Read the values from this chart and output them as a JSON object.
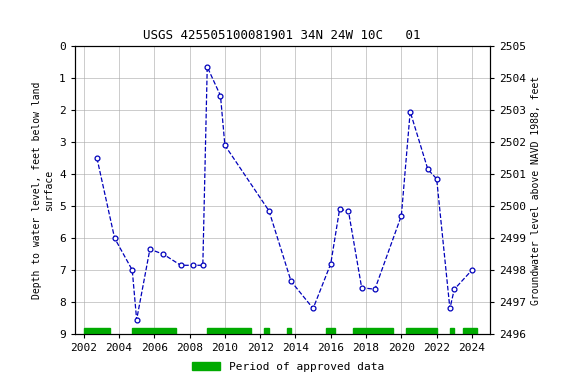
{
  "title": "USGS 425505100081901 34N 24W 10C   01",
  "ylabel_left": "Depth to water level, feet below land\nsurface",
  "ylabel_right": "Groundwater level above NAVD 1988, feet",
  "data_points": [
    [
      2002.75,
      3.5
    ],
    [
      2003.75,
      6.0
    ],
    [
      2004.75,
      7.0
    ],
    [
      2005.0,
      8.55
    ],
    [
      2005.75,
      6.35
    ],
    [
      2006.5,
      6.5
    ],
    [
      2007.5,
      6.85
    ],
    [
      2008.2,
      6.85
    ],
    [
      2008.75,
      6.85
    ],
    [
      2009.0,
      0.65
    ],
    [
      2009.75,
      1.55
    ],
    [
      2010.0,
      3.1
    ],
    [
      2012.5,
      5.15
    ],
    [
      2013.75,
      7.35
    ],
    [
      2015.0,
      8.2
    ],
    [
      2016.0,
      6.8
    ],
    [
      2016.5,
      5.1
    ],
    [
      2017.0,
      5.15
    ],
    [
      2017.75,
      7.55
    ],
    [
      2018.5,
      7.6
    ],
    [
      2020.0,
      5.3
    ],
    [
      2020.5,
      2.05
    ],
    [
      2021.5,
      3.85
    ],
    [
      2022.0,
      4.15
    ],
    [
      2022.75,
      8.2
    ],
    [
      2023.0,
      7.6
    ],
    [
      2024.0,
      7.0
    ]
  ],
  "ylim_left": [
    9.0,
    0.0
  ],
  "ylim_right": [
    2496.0,
    2505.0
  ],
  "xlim": [
    2001.5,
    2025.0
  ],
  "xticks": [
    2002,
    2004,
    2006,
    2008,
    2010,
    2012,
    2014,
    2016,
    2018,
    2020,
    2022,
    2024
  ],
  "yticks_left": [
    0.0,
    1.0,
    2.0,
    3.0,
    4.0,
    5.0,
    6.0,
    7.0,
    8.0,
    9.0
  ],
  "yticks_right": [
    2496.0,
    2497.0,
    2498.0,
    2499.0,
    2500.0,
    2501.0,
    2502.0,
    2503.0,
    2504.0,
    2505.0
  ],
  "line_color": "#0000bb",
  "marker_color": "#0000bb",
  "marker_face": "white",
  "line_style": "--",
  "marker_style": "o",
  "marker_size": 3.5,
  "green_bars": [
    [
      2002.0,
      2003.5
    ],
    [
      2004.75,
      2007.25
    ],
    [
      2009.0,
      2011.5
    ],
    [
      2012.2,
      2012.5
    ],
    [
      2013.5,
      2013.75
    ],
    [
      2015.75,
      2016.25
    ],
    [
      2017.25,
      2019.5
    ],
    [
      2020.25,
      2022.0
    ],
    [
      2022.75,
      2023.0
    ],
    [
      2023.5,
      2024.3
    ]
  ],
  "bar_color": "#00aa00",
  "background_color": "#ffffff",
  "grid_color": "#aaaaaa",
  "plot_bg_color": "#ffffff"
}
